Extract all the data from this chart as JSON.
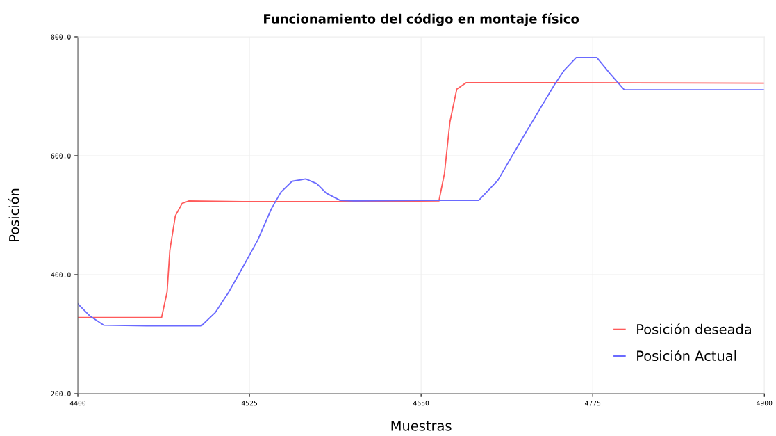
{
  "chart_data": {
    "type": "line",
    "title": "Funcionamiento del código en montaje físico",
    "xlabel": "Muestras",
    "ylabel": "Posición",
    "xlim": [
      4400,
      4900
    ],
    "xticks": [
      4400,
      4525,
      4650,
      4775,
      4900
    ],
    "ylim": [
      200,
      800
    ],
    "yticks": [
      {
        "value": 200,
        "label": "200.0"
      },
      {
        "value": 400,
        "label": "400.0"
      },
      {
        "value": 600,
        "label": "600.0"
      },
      {
        "value": 800,
        "label": "800.0"
      }
    ],
    "grid": true,
    "legend": "bottom right",
    "marker": "none",
    "line_style": "solid",
    "series": [
      {
        "name": "Posición deseada",
        "color": "#ff5a5a",
        "x": [
          4400,
          4430,
          4461,
          4465,
          4467,
          4471,
          4476,
          4481,
          4520,
          4600,
          4663,
          4667,
          4671,
          4676,
          4683,
          4750,
          4900
        ],
        "values": [
          328,
          328,
          328,
          371,
          441,
          499,
          520,
          524,
          523,
          523,
          524,
          570,
          657,
          712,
          723,
          723,
          722
        ]
      },
      {
        "name": "Posición Actual",
        "color": "#6a6aff",
        "x": [
          4400,
          4409,
          4419,
          4450,
          4490,
          4500,
          4510,
          4520,
          4531,
          4541,
          4548,
          4556,
          4566,
          4574,
          4581,
          4591,
          4601,
          4650,
          4692,
          4706,
          4727,
          4747,
          4754,
          4763,
          4778,
          4788,
          4798,
          4850,
          4900
        ],
        "values": [
          351,
          330,
          315,
          314,
          314,
          336,
          371,
          412,
          458,
          511,
          539,
          557,
          561,
          553,
          537,
          525,
          524,
          525,
          525,
          559,
          642,
          719,
          743,
          765,
          765,
          737,
          711,
          711,
          711
        ]
      }
    ]
  }
}
